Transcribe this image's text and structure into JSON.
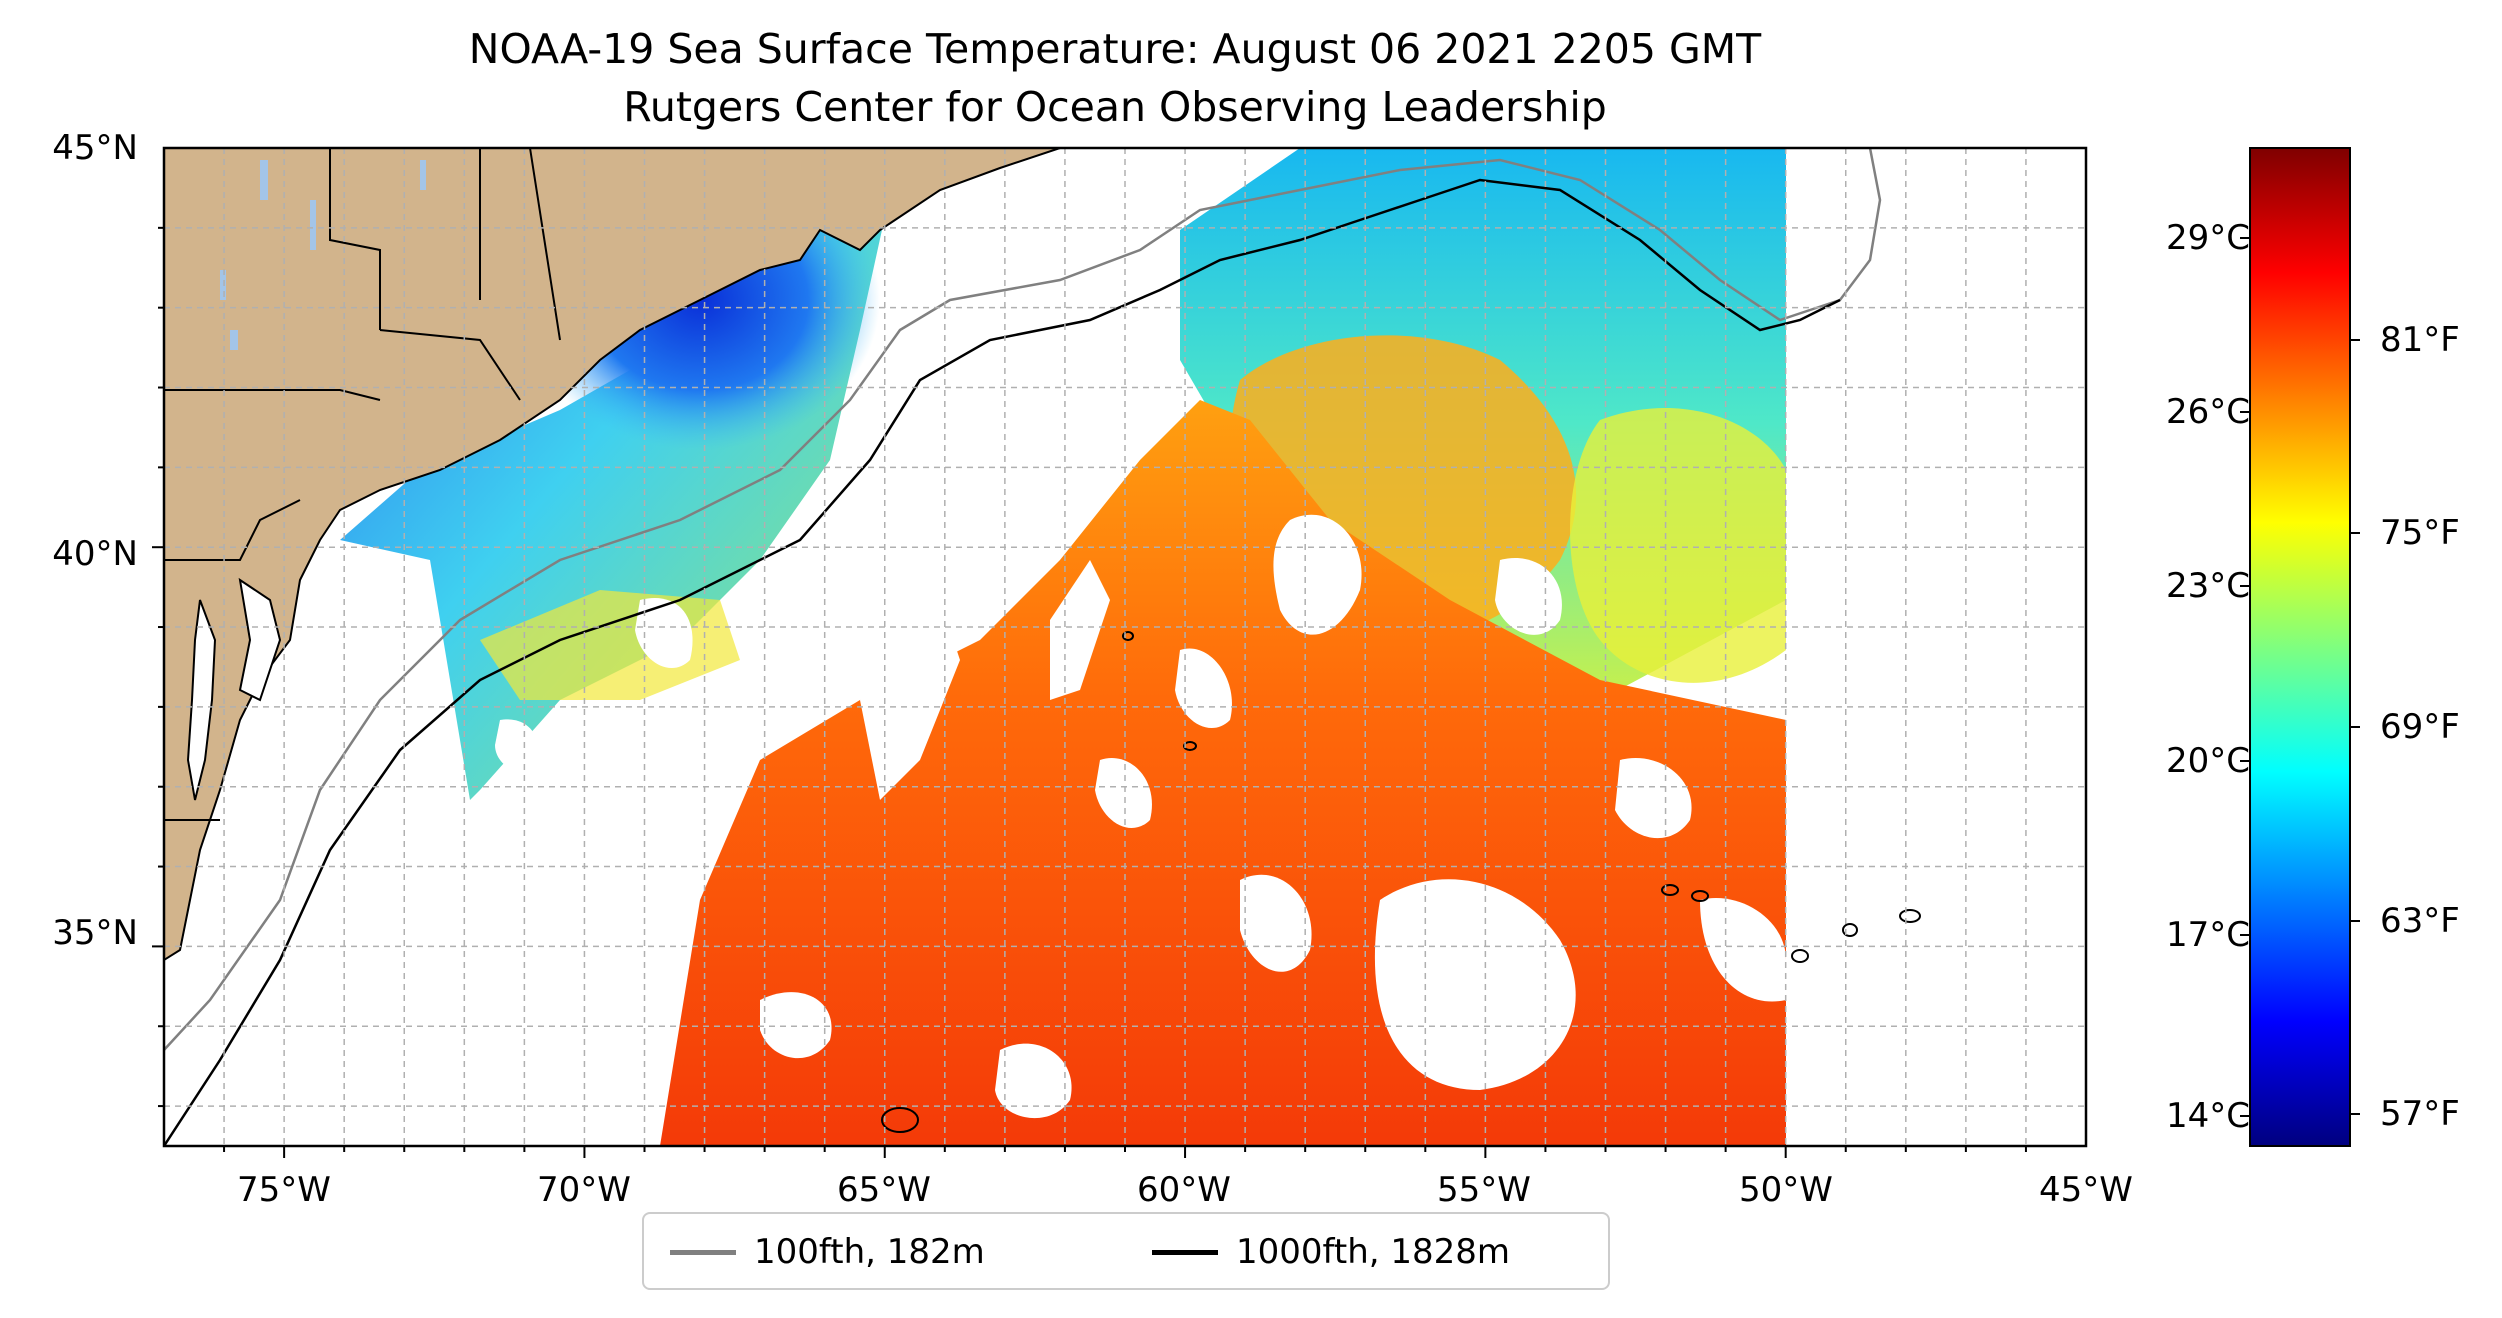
{
  "title": {
    "line1": "NOAA-19 Sea Surface Temperature: August 06 2021 2205 GMT",
    "line2": "Rutgers Center for Ocean Observing Leadership"
  },
  "map": {
    "lon_range": [
      -77,
      -45
    ],
    "lat_range": [
      32.5,
      45
    ],
    "projection": "plate-carree",
    "gridlines": true,
    "land_color": "#d2b48c",
    "lat_ticks": [
      "45°N",
      "40°N",
      "35°N"
    ],
    "lon_ticks": [
      "75°W",
      "70°W",
      "65°W",
      "60°W",
      "55°W",
      "50°W",
      "45°W"
    ]
  },
  "colorbar": {
    "colormap": "jet",
    "range_celsius": [
      13.5,
      31
    ],
    "celsius_ticks": [
      "29°C",
      "26°C",
      "23°C",
      "20°C",
      "17°C",
      "14°C"
    ],
    "fahrenheit_ticks": [
      "81°F",
      "75°F",
      "69°F",
      "63°F",
      "57°F"
    ]
  },
  "legend": {
    "items": [
      {
        "label": "100fth, 182m",
        "color": "#808080"
      },
      {
        "label": "1000fth, 1828m",
        "color": "#000000"
      }
    ]
  }
}
